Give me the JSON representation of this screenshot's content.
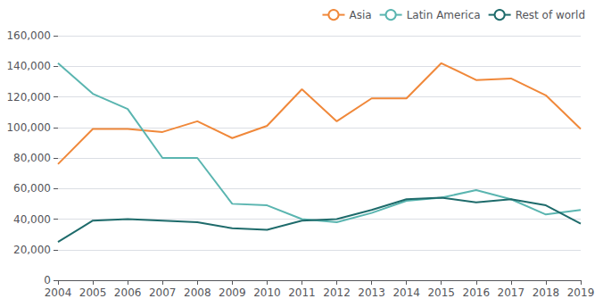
{
  "chart_data": {
    "type": "line",
    "x": [
      2004,
      2005,
      2006,
      2007,
      2008,
      2009,
      2010,
      2011,
      2012,
      2013,
      2014,
      2015,
      2016,
      2017,
      2018,
      2019
    ],
    "xlim": [
      2004,
      2019
    ],
    "xticks": [
      2004,
      2005,
      2006,
      2007,
      2008,
      2009,
      2010,
      2011,
      2012,
      2013,
      2014,
      2015,
      2016,
      2017,
      2018,
      2019
    ],
    "ylim": [
      0,
      160000
    ],
    "yticks": [
      0,
      {
        "value": 20000,
        "label": "20,000"
      },
      {
        "value": 40000,
        "label": "40,000"
      },
      {
        "value": 60000,
        "label": "60,000"
      },
      {
        "value": 80000,
        "label": "80,000"
      },
      {
        "value": 100000,
        "label": "100,000"
      },
      {
        "value": 120000,
        "label": "120,000"
      },
      {
        "value": 140000,
        "label": "140,000"
      },
      {
        "value": 160000,
        "label": "160,000"
      }
    ],
    "grid": true,
    "legend": "upper right",
    "series": [
      {
        "name": "Asia",
        "color": "#f0883a",
        "values": [
          76000,
          99000,
          99000,
          97000,
          104000,
          93000,
          101000,
          125000,
          104000,
          119000,
          119000,
          142000,
          131000,
          132000,
          121000,
          99000
        ]
      },
      {
        "name": "Latin America",
        "color": "#5ab5b0",
        "values": [
          142000,
          122000,
          112000,
          80000,
          80000,
          50000,
          49000,
          40000,
          38000,
          44000,
          52000,
          54000,
          59000,
          53000,
          43000,
          46000
        ]
      },
      {
        "name": "Rest of world",
        "color": "#1e6b6b",
        "values": [
          25000,
          39000,
          40000,
          39000,
          38000,
          34000,
          33000,
          39000,
          40000,
          46000,
          53000,
          54000,
          51000,
          53000,
          49000,
          37000
        ]
      }
    ]
  }
}
